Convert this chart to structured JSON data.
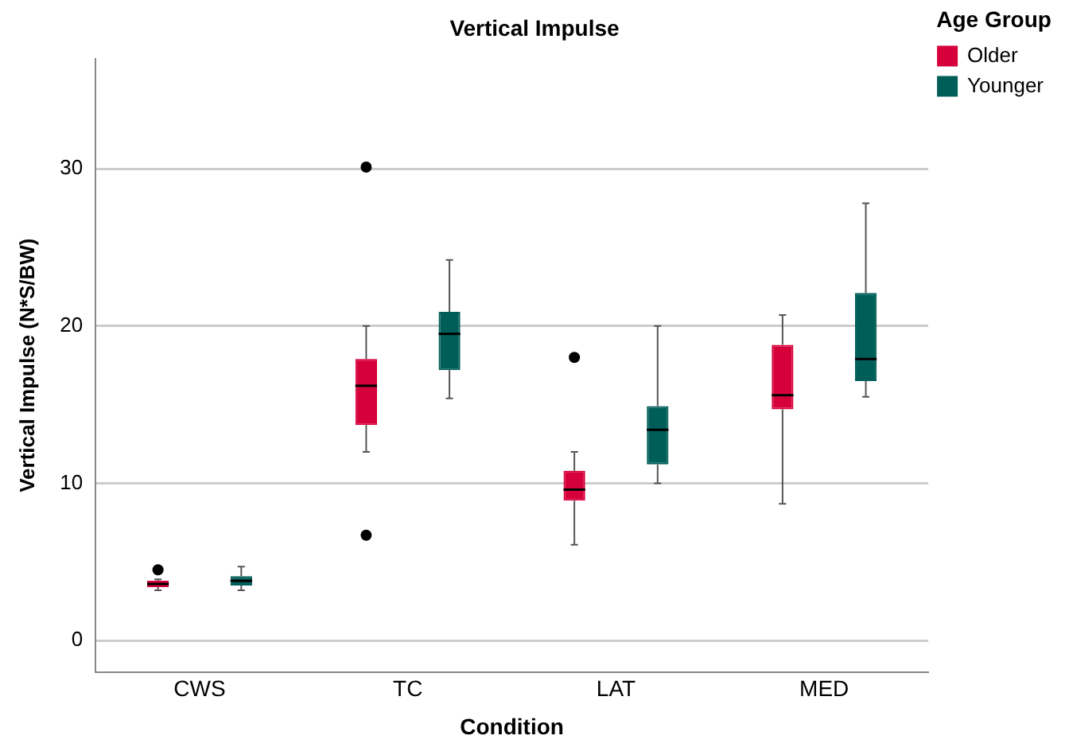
{
  "chart_data": {
    "type": "box",
    "title": "Vertical Impulse",
    "xlabel": "Condition",
    "ylabel": "Vertical Impulse (N*S/BW)",
    "legend_title": "Age Group",
    "categories": [
      "CWS",
      "TC",
      "LAT",
      "MED"
    ],
    "series": [
      {
        "name": "Older",
        "color": "#d6003a",
        "boxes": [
          {
            "low": 3.2,
            "q1": 3.4,
            "median": 3.6,
            "q3": 3.8,
            "high": 3.9,
            "outliers": [
              4.5
            ]
          },
          {
            "low": 12.0,
            "q1": 13.7,
            "median": 16.2,
            "q3": 17.9,
            "high": 20.0,
            "outliers": [
              30.1,
              6.7
            ]
          },
          {
            "low": 6.1,
            "q1": 8.9,
            "median": 9.6,
            "q3": 10.8,
            "high": 12.0,
            "outliers": [
              18.0
            ]
          },
          {
            "low": 8.7,
            "q1": 14.7,
            "median": 15.6,
            "q3": 18.8,
            "high": 20.7
          }
        ]
      },
      {
        "name": "Younger",
        "color": "#005e58",
        "boxes": [
          {
            "low": 3.2,
            "q1": 3.5,
            "median": 3.8,
            "q3": 4.1,
            "high": 4.7
          },
          {
            "low": 15.4,
            "q1": 17.2,
            "median": 19.5,
            "q3": 20.9,
            "high": 24.2
          },
          {
            "low": 10.0,
            "q1": 11.2,
            "median": 13.4,
            "q3": 14.9,
            "high": 20.0
          },
          {
            "low": 15.5,
            "q1": 16.5,
            "median": 17.9,
            "q3": 22.1,
            "high": 27.8
          }
        ]
      }
    ],
    "ylim": [
      -2,
      37
    ],
    "yticks": [
      0,
      10,
      20,
      30
    ],
    "grid": "y",
    "legend": "top right"
  }
}
